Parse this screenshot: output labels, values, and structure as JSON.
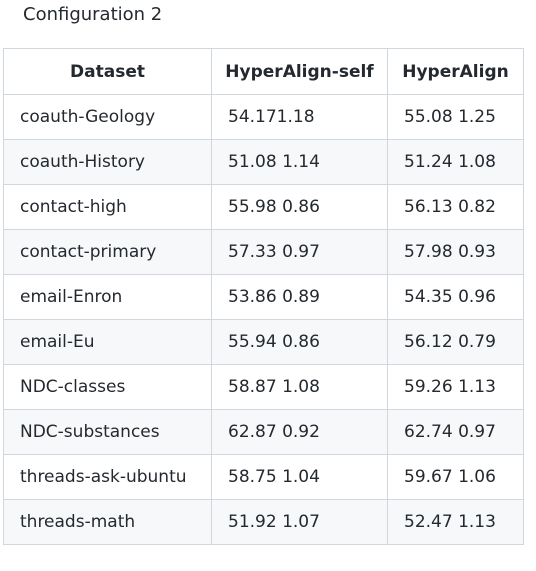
{
  "caption": "Configuration 2",
  "table": {
    "headers": [
      "Dataset",
      "HyperAlign-self",
      "HyperAlign"
    ],
    "rows": [
      [
        "coauth-Geology",
        "54.171.18",
        "55.08 1.25"
      ],
      [
        "coauth-History",
        "51.08 1.14",
        "51.24 1.08"
      ],
      [
        "contact-high",
        "55.98 0.86",
        "56.13 0.82"
      ],
      [
        "contact-primary",
        "57.33 0.97",
        "57.98 0.93"
      ],
      [
        "email-Enron",
        "53.86 0.89",
        "54.35 0.96"
      ],
      [
        "email-Eu",
        "55.94 0.86",
        "56.12 0.79"
      ],
      [
        "NDC-classes",
        "58.87 1.08",
        "59.26 1.13"
      ],
      [
        "NDC-substances",
        "62.87 0.92",
        "62.74 0.97"
      ],
      [
        "threads-ask-ubuntu",
        "58.75 1.04",
        "59.67 1.06"
      ],
      [
        "threads-math",
        "51.92 1.07",
        "52.47 1.13"
      ]
    ]
  }
}
